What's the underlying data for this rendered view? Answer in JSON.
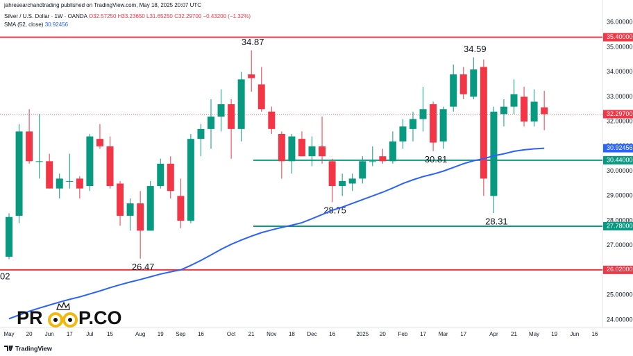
{
  "header": {
    "publisher": "jahresearchandtrading published on TradingView.com, May 18, 2025 20:07 UTC",
    "symbol": "Silver / U.S. Dollar · 1W · OANDA",
    "open": "O32.57250",
    "high": "H33.23650",
    "low": "L31.65250",
    "close": "C32.29700",
    "change": "−0.43200 (−1.32%)",
    "indicator": "SMA (52, close)",
    "indicator_value": "30.92456"
  },
  "watermark": {
    "left": "PR",
    "right": "P.CO"
  },
  "footer": "TradingView",
  "chart_data": {
    "type": "candlestick",
    "categories": [
      "May",
      null,
      "20",
      null,
      "Jun",
      null,
      "17",
      null,
      "Jul",
      null,
      "15",
      null,
      null,
      "Aug",
      null,
      "19",
      null,
      "Sep",
      null,
      "16",
      null,
      null,
      "Oct",
      null,
      "21",
      null,
      "Nov",
      null,
      "18",
      null,
      "Dec",
      null,
      "16",
      null,
      null,
      "2025",
      null,
      "20",
      null,
      "Feb",
      null,
      "17",
      null,
      "Mar",
      null,
      "17",
      null,
      null,
      "Apr",
      null,
      "21",
      null,
      "May",
      null,
      "19",
      null,
      "Jun",
      null,
      "16"
    ],
    "open": [
      26.55,
      28.2,
      31.6,
      30.4,
      30.4,
      29.3,
      29.6,
      29.7,
      29.4,
      31.3,
      31.0,
      29.5,
      28.2,
      28.7,
      27.6,
      29.4,
      30.3,
      29.0,
      28.0,
      31.3,
      31.7,
      32.2,
      32.7,
      31.7,
      33.9,
      33.5,
      32.4,
      31.5,
      30.4,
      31.3,
      30.6,
      31.0,
      30.4,
      29.4,
      29.5,
      29.7,
      30.4,
      30.6,
      30.4,
      31.2,
      31.7,
      32.1,
      32.7,
      31.2,
      32.6,
      33.9,
      33.0,
      34.2,
      29.0,
      32.3,
      32.6,
      33.0,
      32.0,
      32.5725,
      null,
      null,
      null,
      null,
      null
    ],
    "high": [
      28.3,
      31.9,
      32.5,
      32.3,
      30.7,
      29.9,
      30.7,
      29.8,
      31.5,
      31.9,
      31.4,
      29.6,
      28.9,
      29.2,
      29.6,
      30.5,
      30.6,
      29.7,
      31.5,
      31.9,
      32.9,
      33.3,
      32.9,
      34.0,
      34.87,
      34.2,
      32.6,
      31.6,
      31.5,
      31.6,
      31.4,
      32.2,
      30.5,
      29.9,
      29.9,
      30.6,
      31.0,
      30.9,
      31.6,
      32.1,
      32.4,
      33.4,
      32.8,
      32.6,
      34.3,
      34.2,
      34.59,
      34.5,
      32.6,
      32.9,
      33.7,
      33.4,
      33.3,
      33.2365,
      null,
      null,
      null,
      null,
      null
    ],
    "low": [
      26.45,
      27.9,
      30.3,
      29.7,
      29.3,
      28.9,
      29.3,
      28.9,
      29.2,
      30.9,
      29.3,
      27.8,
      27.6,
      26.47,
      27.6,
      29.3,
      28.9,
      27.7,
      27.9,
      30.6,
      30.9,
      31.6,
      30.5,
      31.2,
      33.2,
      32.4,
      31.5,
      29.7,
      29.9,
      30.6,
      30.2,
      30.3,
      28.75,
      29.0,
      29.2,
      29.5,
      30.2,
      30.3,
      30.3,
      30.9,
      31.2,
      31.6,
      30.81,
      30.9,
      32.4,
      32.9,
      32.9,
      29.0,
      28.31,
      31.8,
      32.3,
      31.8,
      31.8,
      31.6525,
      null,
      null,
      null,
      null,
      null
    ],
    "close": [
      28.15,
      31.6,
      30.4,
      30.4,
      29.3,
      29.7,
      29.6,
      29.3,
      31.4,
      31.0,
      29.4,
      28.2,
      28.7,
      27.6,
      29.4,
      30.3,
      29.2,
      28.0,
      31.3,
      31.7,
      32.2,
      32.7,
      31.7,
      33.7,
      33.75,
      32.5,
      31.7,
      30.4,
      31.4,
      30.6,
      31.0,
      30.6,
      29.4,
      29.6,
      29.7,
      30.4,
      30.4,
      30.4,
      31.2,
      31.8,
      32.1,
      32.5,
      31.15,
      32.5,
      33.9,
      33.1,
      34.1,
      29.7,
      32.4,
      32.6,
      33.1,
      32.0,
      32.8,
      32.297,
      null,
      null,
      null,
      null,
      null
    ],
    "high_labels": [
      null,
      null,
      null,
      null,
      null,
      null,
      null,
      null,
      null,
      null,
      null,
      null,
      null,
      null,
      null,
      null,
      null,
      null,
      null,
      null,
      null,
      null,
      null,
      null,
      34.87,
      null,
      null,
      null,
      null,
      null,
      null,
      null,
      null,
      null,
      null,
      null,
      null,
      null,
      null,
      null,
      null,
      null,
      null,
      null,
      null,
      null,
      34.59,
      null,
      null,
      null,
      null,
      null,
      null,
      null,
      null,
      null,
      null,
      null,
      null
    ],
    "low_labels": [
      null,
      null,
      null,
      null,
      null,
      null,
      null,
      null,
      null,
      null,
      null,
      null,
      null,
      26.47,
      null,
      null,
      null,
      null,
      null,
      null,
      null,
      null,
      null,
      null,
      null,
      null,
      null,
      null,
      null,
      null,
      null,
      null,
      28.75,
      null,
      null,
      null,
      null,
      null,
      null,
      null,
      null,
      null,
      30.81,
      null,
      null,
      null,
      null,
      null,
      28.31,
      null,
      null,
      null,
      null,
      null,
      null,
      null,
      null,
      null,
      null
    ],
    "up_color": "#089981",
    "down_color": "#f23645",
    "series": [
      {
        "name": "SMA (52, close)",
        "color": "#2962ff",
        "values": [
          24.05,
          24.2,
          24.35,
          24.48,
          24.6,
          24.72,
          24.83,
          24.93,
          25.05,
          25.17,
          25.3,
          25.42,
          25.53,
          25.63,
          25.74,
          25.85,
          25.94,
          26.02,
          26.2,
          26.4,
          26.62,
          26.85,
          27.05,
          27.22,
          27.38,
          27.52,
          27.63,
          27.73,
          27.82,
          27.92,
          28.08,
          28.25,
          28.42,
          28.55,
          28.7,
          28.85,
          29.0,
          29.15,
          29.32,
          29.5,
          29.65,
          29.78,
          29.88,
          30.0,
          30.15,
          30.3,
          30.42,
          30.5,
          30.62,
          30.7,
          30.8,
          30.86,
          30.9,
          30.92456,
          null,
          null,
          null,
          null,
          null
        ]
      }
    ],
    "levels": [
      {
        "value": 35.4,
        "label": "35.40000",
        "color": "#f23645",
        "line": "full"
      },
      {
        "value": 32.297,
        "label": "32.29700",
        "color": "#f23645",
        "line": "dotted"
      },
      {
        "value": 30.92456,
        "label": "30.92456",
        "color": "#2962ff"
      },
      {
        "value": 30.44,
        "label": "30.44000",
        "color": "#089981",
        "line": "right"
      },
      {
        "value": 27.78,
        "label": "27.78000",
        "color": "#089981",
        "line": "right"
      },
      {
        "value": 26.02,
        "label": "26.02000",
        "color": "#f23645",
        "line": "full",
        "left_label": "02"
      }
    ],
    "ylim": [
      23.75,
      36.9
    ],
    "yticks": [
      {
        "value": 24,
        "label": "24.00000"
      },
      {
        "value": 25,
        "label": "25.00000"
      },
      {
        "value": 26,
        "label": "26.00000"
      },
      {
        "value": 27,
        "label": "27.00000"
      },
      {
        "value": 28,
        "label": "28.00000"
      },
      {
        "value": 29,
        "label": "29.00000"
      },
      {
        "value": 30,
        "label": "30.00000"
      },
      {
        "value": 31,
        "label": "31.00000"
      },
      {
        "value": 32,
        "label": "32.00000"
      },
      {
        "value": 33,
        "label": "33.00000"
      },
      {
        "value": 34,
        "label": "34.00000"
      },
      {
        "value": 35,
        "label": "35.00000"
      },
      {
        "value": 36,
        "label": "36.00000"
      }
    ],
    "grid": false
  }
}
